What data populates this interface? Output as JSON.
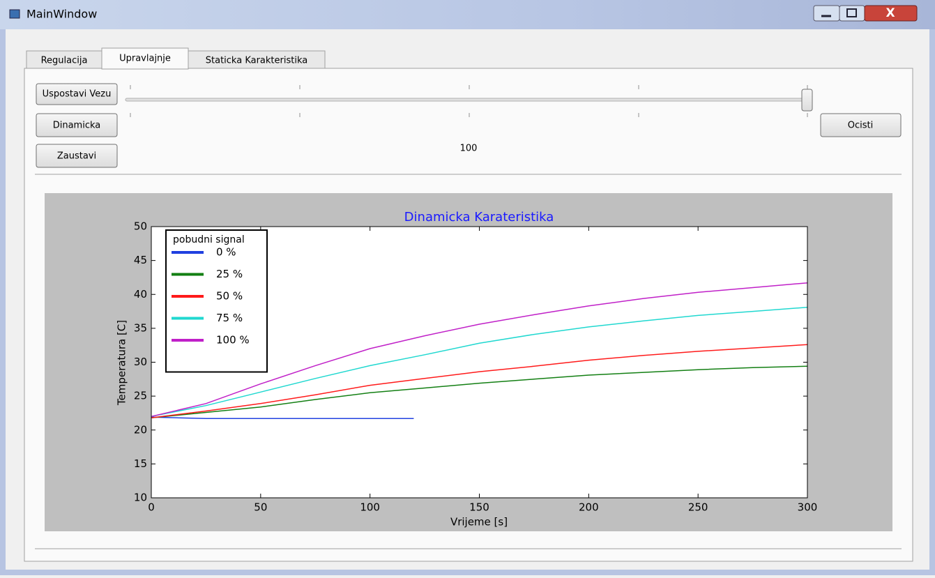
{
  "window": {
    "title": "MainWindow"
  },
  "tabs": [
    "Regulacija",
    "Upravlajnje",
    "Staticka Karakteristika"
  ],
  "active_tab": 1,
  "buttons": {
    "connect": "Uspostavi Vezu",
    "dynamic": "Dinamicka",
    "stop": "Zaustavi",
    "clear": "Ocisti"
  },
  "slider": {
    "value": 100
  },
  "chart_data": {
    "type": "line",
    "title": "Dinamicka Karateristika",
    "xlabel": "Vrijeme [s]",
    "ylabel": "Temperatura [C]",
    "legend_title": "pobudni signal",
    "legend": "upper left",
    "xlim": [
      0,
      300
    ],
    "ylim": [
      10,
      50
    ],
    "xticks": [
      0,
      50,
      100,
      150,
      200,
      250,
      300
    ],
    "yticks": [
      10,
      15,
      20,
      25,
      30,
      35,
      40,
      45,
      50
    ],
    "series": [
      {
        "name": "0 %",
        "color": "#2040e0",
        "x": [
          0,
          25,
          50,
          75,
          100,
          120
        ],
        "values": [
          21.9,
          21.7,
          21.7,
          21.7,
          21.7,
          21.7
        ]
      },
      {
        "name": "25 %",
        "color": "#137f13",
        "x": [
          0,
          25,
          50,
          75,
          100,
          125,
          150,
          175,
          200,
          225,
          250,
          275,
          300
        ],
        "values": [
          21.8,
          22.6,
          23.4,
          24.5,
          25.5,
          26.2,
          26.9,
          27.5,
          28.1,
          28.5,
          28.9,
          29.2,
          29.4
        ]
      },
      {
        "name": "50 %",
        "color": "#ff1a1a",
        "x": [
          0,
          25,
          50,
          75,
          100,
          125,
          150,
          175,
          200,
          225,
          250,
          275,
          300
        ],
        "values": [
          21.8,
          22.8,
          23.9,
          25.2,
          26.6,
          27.6,
          28.6,
          29.4,
          30.3,
          31.0,
          31.6,
          32.1,
          32.6
        ]
      },
      {
        "name": "75 %",
        "color": "#20d8d0",
        "x": [
          0,
          25,
          50,
          75,
          100,
          125,
          150,
          175,
          200,
          225,
          250,
          275,
          300
        ],
        "values": [
          22.0,
          23.6,
          25.6,
          27.6,
          29.5,
          31.1,
          32.8,
          34.1,
          35.2,
          36.1,
          36.9,
          37.5,
          38.1
        ]
      },
      {
        "name": "100 %",
        "color": "#c020c8",
        "x": [
          0,
          25,
          50,
          75,
          100,
          125,
          150,
          175,
          200,
          225,
          250,
          275,
          300
        ],
        "values": [
          22.0,
          23.9,
          26.8,
          29.5,
          32.0,
          33.9,
          35.6,
          37.0,
          38.3,
          39.4,
          40.3,
          41.0,
          41.7
        ]
      }
    ]
  }
}
